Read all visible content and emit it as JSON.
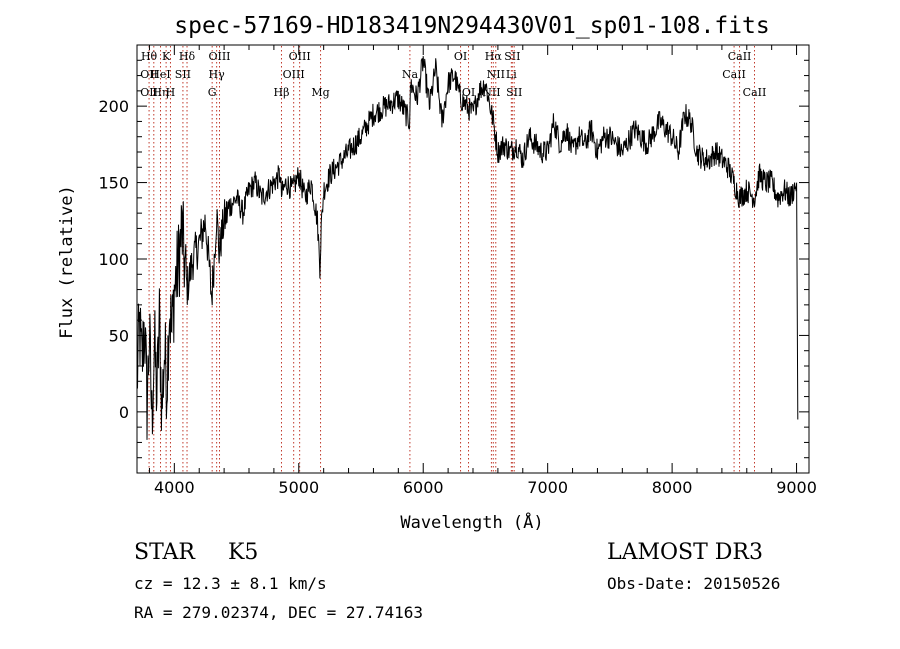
{
  "chart_data": {
    "type": "line",
    "title": "spec-57169-HD183419N294430V01_sp01-108.fits",
    "xlabel": "Wavelength (Å)",
    "ylabel": "Flux (relative)",
    "xlim": [
      3700,
      9100
    ],
    "ylim": [
      -40,
      240
    ],
    "xticks": [
      4000,
      5000,
      6000,
      7000,
      8000,
      9000
    ],
    "yticks": [
      0,
      50,
      100,
      150,
      200
    ],
    "grid": false,
    "series": [
      {
        "name": "flux",
        "x": [
          3700,
          3720,
          3740,
          3760,
          3780,
          3800,
          3820,
          3840,
          3860,
          3880,
          3900,
          3920,
          3940,
          3960,
          3980,
          4000,
          4030,
          4060,
          4100,
          4150,
          4200,
          4250,
          4300,
          4320,
          4340,
          4360,
          4380,
          4400,
          4450,
          4500,
          4550,
          4600,
          4650,
          4700,
          4750,
          4800,
          4850,
          4861,
          4900,
          4950,
          5000,
          5050,
          5100,
          5150,
          5170,
          5180,
          5200,
          5250,
          5300,
          5400,
          5500,
          5600,
          5700,
          5800,
          5890,
          5900,
          5950,
          6000,
          6050,
          6100,
          6150,
          6200,
          6250,
          6300,
          6350,
          6400,
          6450,
          6500,
          6563,
          6600,
          6650,
          6700,
          6750,
          6800,
          6850,
          6900,
          6950,
          7000,
          7050,
          7100,
          7150,
          7200,
          7250,
          7300,
          7350,
          7400,
          7450,
          7500,
          7600,
          7700,
          7800,
          7900,
          8000,
          8050,
          8100,
          8150,
          8200,
          8250,
          8300,
          8350,
          8400,
          8450,
          8498,
          8542,
          8600,
          8662,
          8700,
          8750,
          8800,
          8850,
          8900,
          8950,
          9000,
          9010
        ],
        "values": [
          20,
          55,
          30,
          60,
          5,
          50,
          -5,
          45,
          10,
          60,
          0,
          40,
          20,
          70,
          50,
          80,
          95,
          120,
          80,
          100,
          110,
          125,
          75,
          100,
          130,
          105,
          115,
          125,
          135,
          140,
          130,
          145,
          150,
          140,
          145,
          150,
          155,
          142,
          150,
          145,
          155,
          140,
          150,
          125,
          95,
          120,
          145,
          155,
          160,
          170,
          180,
          195,
          200,
          205,
          190,
          215,
          205,
          230,
          200,
          225,
          190,
          215,
          220,
          205,
          200,
          195,
          210,
          215,
          190,
          170,
          175,
          170,
          175,
          165,
          180,
          175,
          170,
          170,
          190,
          175,
          185,
          170,
          180,
          175,
          185,
          170,
          180,
          180,
          170,
          185,
          175,
          190,
          180,
          170,
          195,
          190,
          170,
          165,
          165,
          170,
          165,
          160,
          150,
          140,
          145,
          140,
          155,
          150,
          150,
          140,
          145,
          140,
          150,
          -5
        ]
      }
    ],
    "annotations": {
      "lines": [
        {
          "wave": 3797,
          "labels": [
            "Hθ",
            "OII",
            "OII"
          ]
        },
        {
          "wave": 3835,
          "labels": [
            "",
            "",
            ""
          ]
        },
        {
          "wave": 3889,
          "labels": [
            "",
            "HeI",
            "Hη"
          ]
        },
        {
          "wave": 3934,
          "labels": [
            "K",
            "",
            ""
          ]
        },
        {
          "wave": 3969,
          "labels": [
            "",
            "",
            "H"
          ]
        },
        {
          "wave": 4069,
          "labels": [
            "",
            "SII",
            ""
          ]
        },
        {
          "wave": 4102,
          "labels": [
            "Hδ",
            "",
            ""
          ]
        },
        {
          "wave": 4304,
          "labels": [
            "",
            "",
            "G"
          ]
        },
        {
          "wave": 4340,
          "labels": [
            "",
            "Hγ",
            ""
          ]
        },
        {
          "wave": 4363,
          "labels": [
            "OIII",
            "",
            ""
          ]
        },
        {
          "wave": 4861,
          "labels": [
            "",
            "",
            "Hβ"
          ]
        },
        {
          "wave": 4959,
          "labels": [
            "",
            "OIII",
            ""
          ]
        },
        {
          "wave": 5007,
          "labels": [
            "OIII",
            "",
            ""
          ]
        },
        {
          "wave": 5175,
          "labels": [
            "",
            "",
            "Mg"
          ]
        },
        {
          "wave": 5893,
          "labels": [
            "",
            "Na",
            ""
          ]
        },
        {
          "wave": 6300,
          "labels": [
            "OI",
            "",
            ""
          ]
        },
        {
          "wave": 6364,
          "labels": [
            "",
            "",
            "OI"
          ]
        },
        {
          "wave": 6548,
          "labels": [
            "",
            "",
            "NII"
          ]
        },
        {
          "wave": 6563,
          "labels": [
            "Hα",
            "",
            ""
          ]
        },
        {
          "wave": 6583,
          "labels": [
            "",
            "NII",
            ""
          ]
        },
        {
          "wave": 6708,
          "labels": [
            "",
            "Li",
            ""
          ]
        },
        {
          "wave": 6716,
          "labels": [
            "SII",
            "",
            ""
          ]
        },
        {
          "wave": 6731,
          "labels": [
            "",
            "",
            "SII"
          ]
        },
        {
          "wave": 8498,
          "labels": [
            "",
            "CaII",
            ""
          ]
        },
        {
          "wave": 8542,
          "labels": [
            "CaII",
            "",
            ""
          ]
        },
        {
          "wave": 8662,
          "labels": [
            "",
            "",
            "CaII"
          ]
        }
      ]
    }
  },
  "info": {
    "class": "STAR",
    "subclass": "K5",
    "survey": "LAMOST DR3",
    "cz": "cz = 12.3 ± 8.1 km/s",
    "obs_date": "Obs-Date: 20150526",
    "coords": "RA = 279.02374, DEC =  27.74163"
  }
}
